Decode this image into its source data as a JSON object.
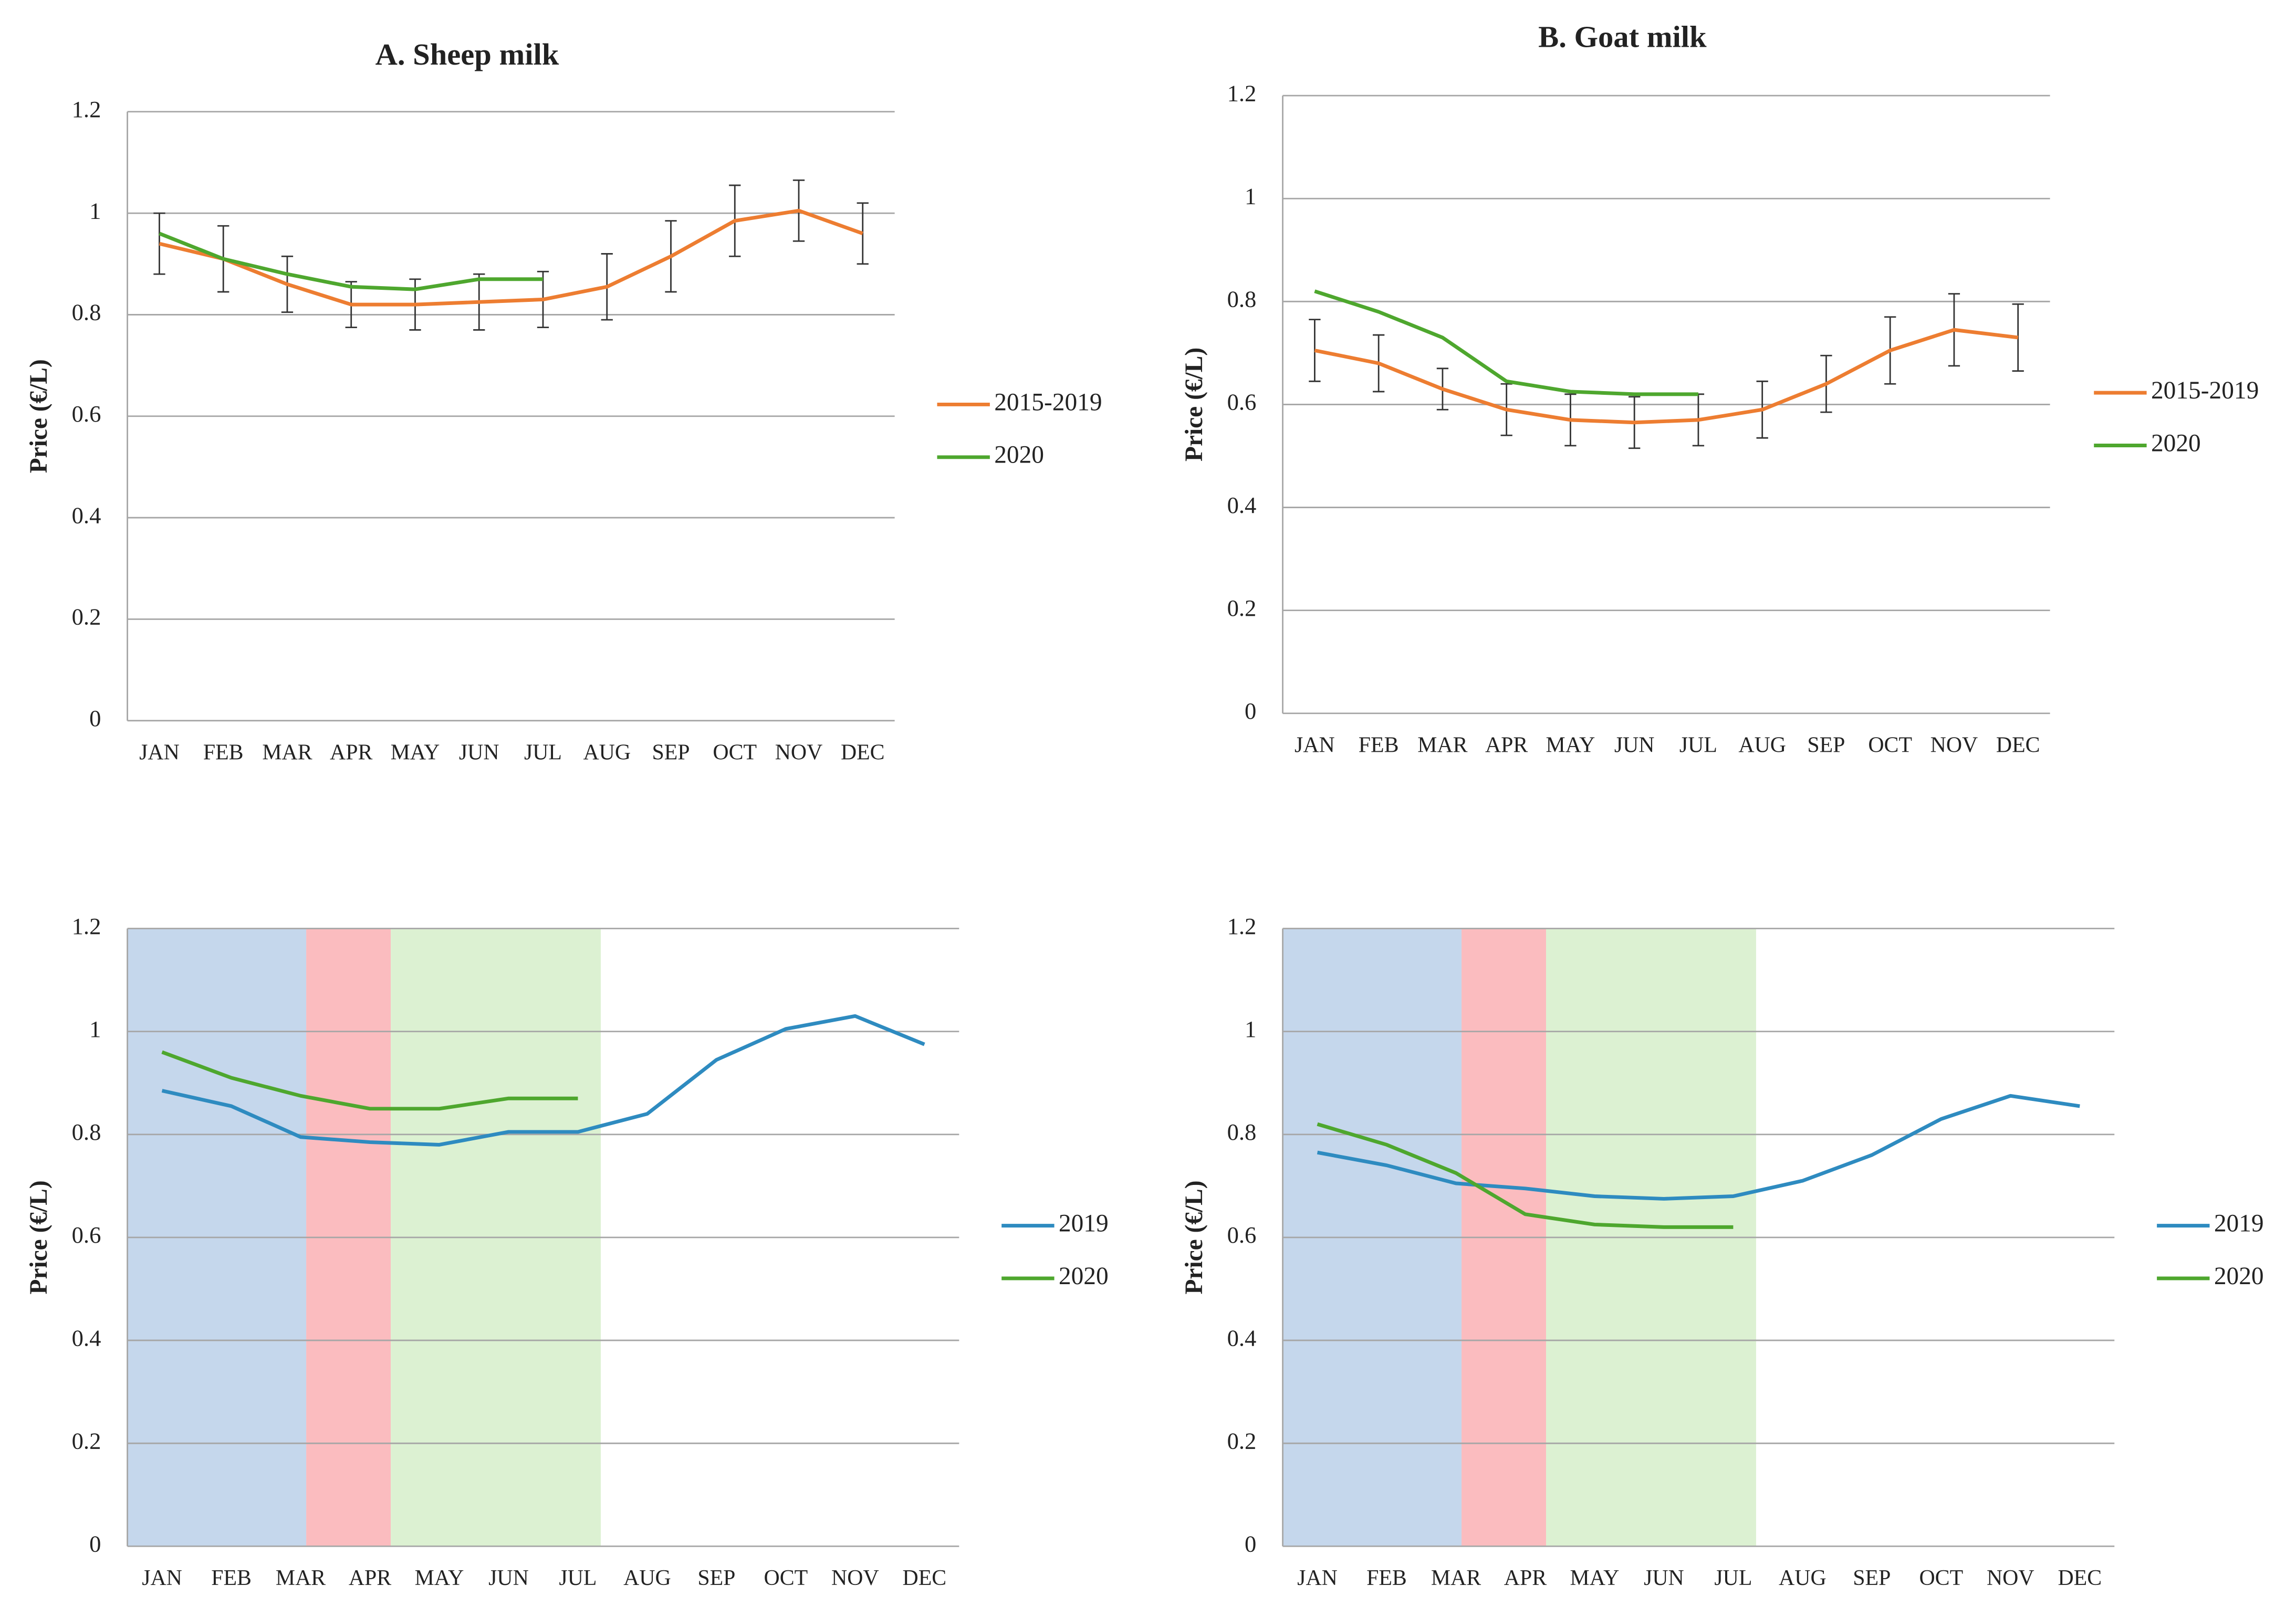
{
  "chart_data": [
    {
      "type": "line",
      "title": "A. Sheep milk",
      "y_label": "Price (€/L)",
      "categories": [
        "JAN",
        "FEB",
        "MAR",
        "APR",
        "MAY",
        "JUN",
        "JUL",
        "AUG",
        "SEP",
        "OCT",
        "NOV",
        "DEC"
      ],
      "series": [
        {
          "name": "2015-2019",
          "color": "#ed7d31",
          "values": [
            0.94,
            0.91,
            0.86,
            0.82,
            0.82,
            0.825,
            0.83,
            0.855,
            0.915,
            0.985,
            1.005,
            0.96
          ],
          "errors": [
            0.06,
            0.065,
            0.055,
            0.045,
            0.05,
            0.055,
            0.055,
            0.065,
            0.07,
            0.07,
            0.06,
            0.06
          ]
        },
        {
          "name": "2020",
          "color": "#4ea72e",
          "values": [
            0.96,
            0.91,
            0.88,
            0.855,
            0.85,
            0.87,
            0.87,
            null,
            null,
            null,
            null,
            null
          ]
        }
      ],
      "ylim": [
        0,
        1.2
      ],
      "yticks": [
        0,
        0.2,
        0.4,
        0.6,
        0.8,
        1,
        1.2
      ],
      "grid": true
    },
    {
      "type": "line",
      "title": "B. Goat milk",
      "y_label": "Price (€/L)",
      "categories": [
        "JAN",
        "FEB",
        "MAR",
        "APR",
        "MAY",
        "JUN",
        "JUL",
        "AUG",
        "SEP",
        "OCT",
        "NOV",
        "DEC"
      ],
      "series": [
        {
          "name": "2015-2019",
          "color": "#ed7d31",
          "values": [
            0.705,
            0.68,
            0.63,
            0.59,
            0.57,
            0.565,
            0.57,
            0.59,
            0.64,
            0.705,
            0.745,
            0.73
          ],
          "errors": [
            0.06,
            0.055,
            0.04,
            0.05,
            0.05,
            0.05,
            0.05,
            0.055,
            0.055,
            0.065,
            0.07,
            0.065
          ]
        },
        {
          "name": "2020",
          "color": "#4ea72e",
          "values": [
            0.82,
            0.78,
            0.73,
            0.645,
            0.625,
            0.62,
            0.62,
            null,
            null,
            null,
            null,
            null
          ]
        }
      ],
      "ylim": [
        0,
        1.2
      ],
      "yticks": [
        0,
        0.2,
        0.4,
        0.6,
        0.8,
        1,
        1.2
      ],
      "grid": true
    },
    {
      "type": "line",
      "y_label": "Price (€/L)",
      "categories": [
        "JAN",
        "FEB",
        "MAR",
        "APR",
        "MAY",
        "JUN",
        "JUL",
        "AUG",
        "SEP",
        "OCT",
        "NOV",
        "DEC"
      ],
      "series": [
        {
          "name": "2019",
          "color": "#2e8bc0",
          "values": [
            0.885,
            0.855,
            0.795,
            0.785,
            0.78,
            0.805,
            0.805,
            0.84,
            0.945,
            1.005,
            1.03,
            0.975
          ]
        },
        {
          "name": "2020",
          "color": "#4ea72e",
          "values": [
            0.96,
            0.91,
            0.875,
            0.85,
            0.85,
            0.87,
            0.87,
            null,
            null,
            null,
            null,
            null
          ]
        }
      ],
      "ylim": [
        0,
        1.2
      ],
      "yticks": [
        0,
        0.2,
        0.4,
        0.6,
        0.8,
        1,
        1.2
      ],
      "grid": true
    },
    {
      "type": "line",
      "y_label": "Price (€/L)",
      "categories": [
        "JAN",
        "FEB",
        "MAR",
        "APR",
        "MAY",
        "JUN",
        "JUL",
        "AUG",
        "SEP",
        "OCT",
        "NOV",
        "DEC"
      ],
      "series": [
        {
          "name": "2019",
          "color": "#2e8bc0",
          "values": [
            0.765,
            0.74,
            0.705,
            0.695,
            0.68,
            0.675,
            0.68,
            0.71,
            0.76,
            0.83,
            0.875,
            0.855
          ]
        },
        {
          "name": "2020",
          "color": "#4ea72e",
          "values": [
            0.82,
            0.78,
            0.725,
            0.645,
            0.625,
            0.62,
            0.62,
            null,
            null,
            null,
            null,
            null
          ]
        }
      ],
      "ylim": [
        0,
        1.2
      ],
      "yticks": [
        0,
        0.2,
        0.4,
        0.6,
        0.8,
        1,
        1.2
      ],
      "grid": true
    }
  ]
}
